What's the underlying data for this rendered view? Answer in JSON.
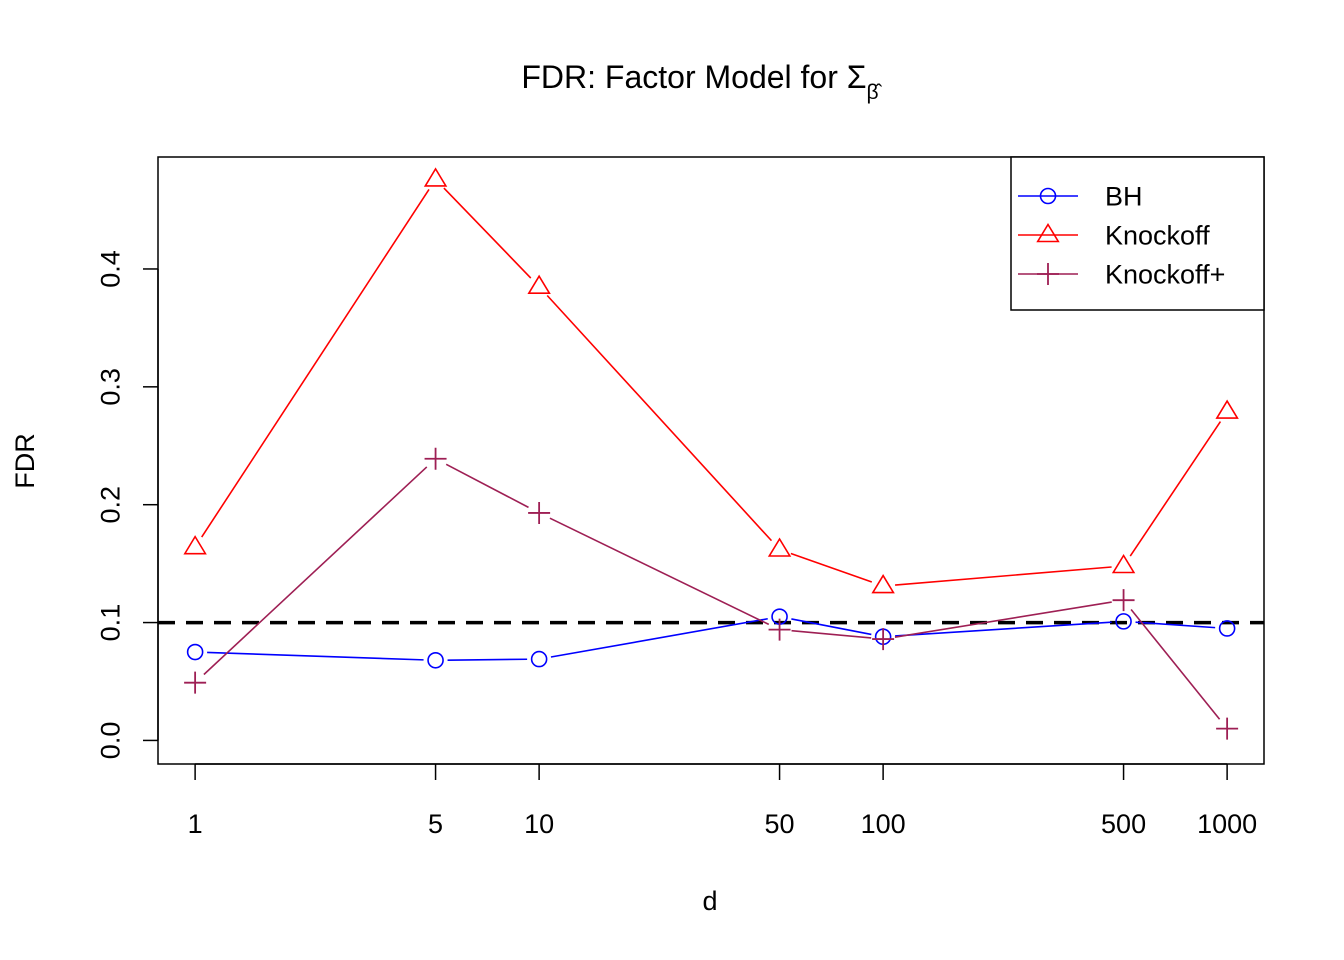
{
  "chart_data": {
    "type": "line",
    "title": "FDR: Factor Model for Σ",
    "title_subscript": "β̂",
    "xlabel": "d",
    "ylabel": "FDR",
    "x_scale": "log",
    "x": [
      1,
      5,
      10,
      50,
      100,
      500,
      1000
    ],
    "x_tick_labels": [
      "1",
      "5",
      "10",
      "50",
      "100",
      "500",
      "1000"
    ],
    "y_ticks": [
      0.0,
      0.1,
      0.2,
      0.3,
      0.4
    ],
    "y_tick_labels": [
      "0.0",
      "0.1",
      "0.2",
      "0.3",
      "0.4"
    ],
    "ylim": [
      -0.02,
      0.495
    ],
    "xlim": [
      0.78,
      1280
    ],
    "grid": false,
    "legend_position": "top-right",
    "reference_line": {
      "y": 0.1,
      "style": "dashed",
      "color": "#000000"
    },
    "series": [
      {
        "name": "BH",
        "color": "#0000ff",
        "marker": "circle",
        "values": [
          0.075,
          0.068,
          0.069,
          0.105,
          0.088,
          0.101,
          0.095
        ]
      },
      {
        "name": "Knockoff",
        "color": "#ff0000",
        "marker": "triangle",
        "values": [
          0.164,
          0.476,
          0.385,
          0.162,
          0.131,
          0.148,
          0.279
        ]
      },
      {
        "name": "Knockoff+",
        "color": "#9e1f54",
        "marker": "plus",
        "values": [
          0.049,
          0.239,
          0.193,
          0.094,
          0.086,
          0.119,
          0.01
        ]
      }
    ]
  }
}
